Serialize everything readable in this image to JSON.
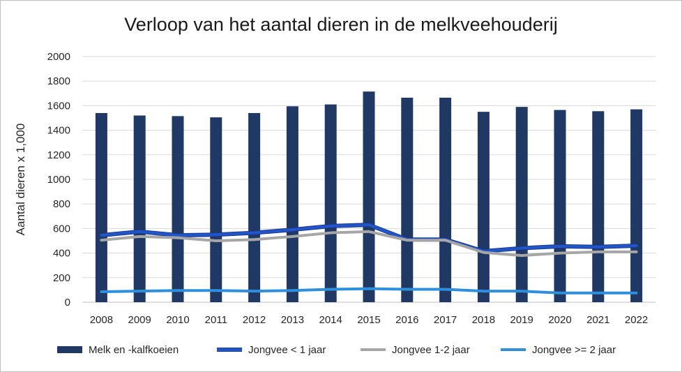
{
  "chart_data": {
    "type": "bar",
    "title": "Verloop van het aantal dieren in de melkveehouderij",
    "xlabel": "",
    "ylabel": "Aantal dieren x 1,000",
    "ylim": [
      0,
      2000
    ],
    "yticks": [
      0,
      200,
      400,
      600,
      800,
      1000,
      1200,
      1400,
      1600,
      1800,
      2000
    ],
    "categories": [
      "2008",
      "2009",
      "2010",
      "2011",
      "2012",
      "2013",
      "2014",
      "2015",
      "2016",
      "2017",
      "2018",
      "2019",
      "2020",
      "2021",
      "2022"
    ],
    "grid": true,
    "legend_position": "bottom",
    "series": [
      {
        "name": "Melk en -kalfkoeien",
        "kind": "bar",
        "color": "#203864",
        "values": [
          1540,
          1520,
          1515,
          1505,
          1540,
          1595,
          1610,
          1715,
          1665,
          1665,
          1550,
          1590,
          1565,
          1555,
          1570
        ]
      },
      {
        "name": "Jongvee < 1 jaar",
        "kind": "line",
        "color": "#2255c8",
        "values": [
          545,
          575,
          545,
          550,
          565,
          590,
          620,
          630,
          510,
          510,
          415,
          440,
          455,
          450,
          460
        ]
      },
      {
        "name": "Jongvee 1-2 jaar",
        "kind": "line",
        "color": "#a6a6a6",
        "values": [
          505,
          535,
          525,
          500,
          510,
          535,
          565,
          575,
          505,
          505,
          405,
          380,
          400,
          410,
          410
        ]
      },
      {
        "name": "Jongvee >= 2 jaar",
        "kind": "line",
        "color": "#2e8fdd",
        "values": [
          85,
          90,
          95,
          95,
          90,
          95,
          105,
          110,
          105,
          105,
          90,
          90,
          75,
          75,
          75
        ]
      }
    ]
  }
}
